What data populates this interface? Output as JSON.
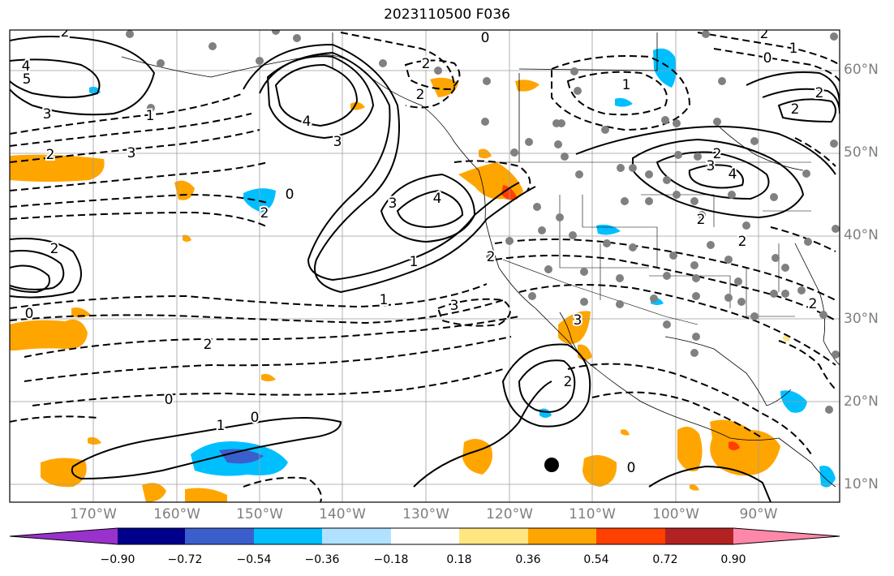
{
  "title": "2023110500 F036",
  "latitude_labels": [
    "60°N",
    "50°N",
    "40°N",
    "30°N",
    "20°N",
    "10°N"
  ],
  "longitude_labels": [
    "170°W",
    "160°W",
    "150°W",
    "140°W",
    "130°W",
    "120°W",
    "110°W",
    "100°W",
    "90°W"
  ],
  "contour_labels": [
    "0",
    "2",
    "1",
    "2",
    "0",
    "4",
    "5",
    "3",
    "2",
    "3",
    "1",
    "4",
    "3",
    "2",
    "2",
    "3",
    "4",
    "0",
    "1",
    "1",
    "2",
    "0",
    "3",
    "4",
    "2",
    "2",
    "3",
    "2",
    "2",
    "2",
    "3",
    "2",
    "1",
    "2",
    "2",
    "2",
    "2",
    "0",
    "1",
    "0",
    "0"
  ],
  "colorbar": {
    "ticks": [
      "−0.90",
      "−0.72",
      "−0.54",
      "−0.36",
      "−0.18",
      "0.18",
      "0.36",
      "0.54",
      "0.72",
      "0.90"
    ],
    "colors": [
      "#9932cc",
      "#00008b",
      "#3a5fcd",
      "#00bfff",
      "#b0e2ff",
      "#ffffff",
      "#ffe680",
      "#ffa500",
      "#ff4000",
      "#b22222",
      "#ff88aa"
    ]
  },
  "map_colors": {
    "orange": "#ffa500",
    "blue": "#00bfff",
    "lightblue": "#b0e2ff",
    "yellow": "#ffe680",
    "red": "#ff4000",
    "darkblue": "#3a5fcd",
    "station": "#808080"
  },
  "station_marker": "black-dot"
}
